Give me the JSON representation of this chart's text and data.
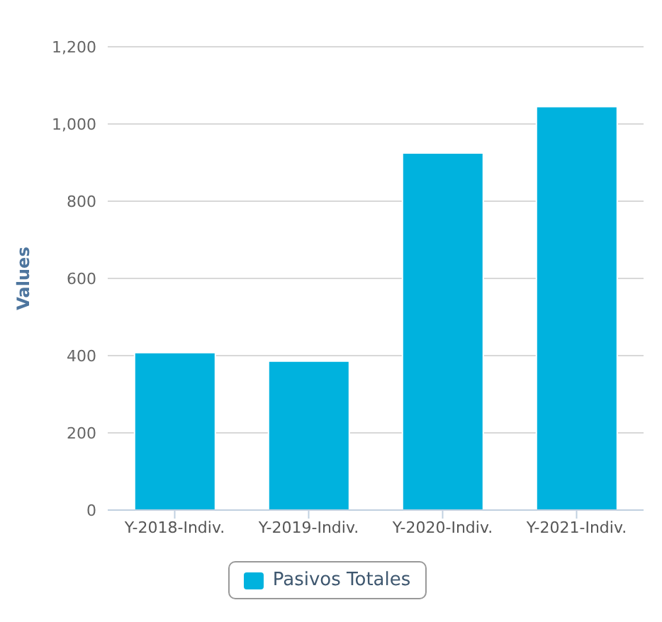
{
  "chart_data": {
    "type": "bar",
    "ylabel": "Values",
    "categories": [
      "Y-2018-Indiv.",
      "Y-2019-Indiv.",
      "Y-2020-Indiv.",
      "Y-2021-Indiv."
    ],
    "series": [
      {
        "name": "Pasivos Totales",
        "color": "#00b2de",
        "values": [
          408,
          386,
          925,
          1045
        ]
      }
    ],
    "ylim": [
      0,
      1200
    ],
    "yticks": [
      0,
      {
        "value": 200,
        "label": "200"
      },
      {
        "value": 400,
        "label": "400"
      },
      {
        "value": 600,
        "label": "600"
      },
      {
        "value": 800,
        "label": "800"
      },
      {
        "value": 1000,
        "label": "1,000"
      },
      {
        "value": 1200,
        "label": "1,200"
      }
    ],
    "grid": "y",
    "legend": "bottom"
  }
}
